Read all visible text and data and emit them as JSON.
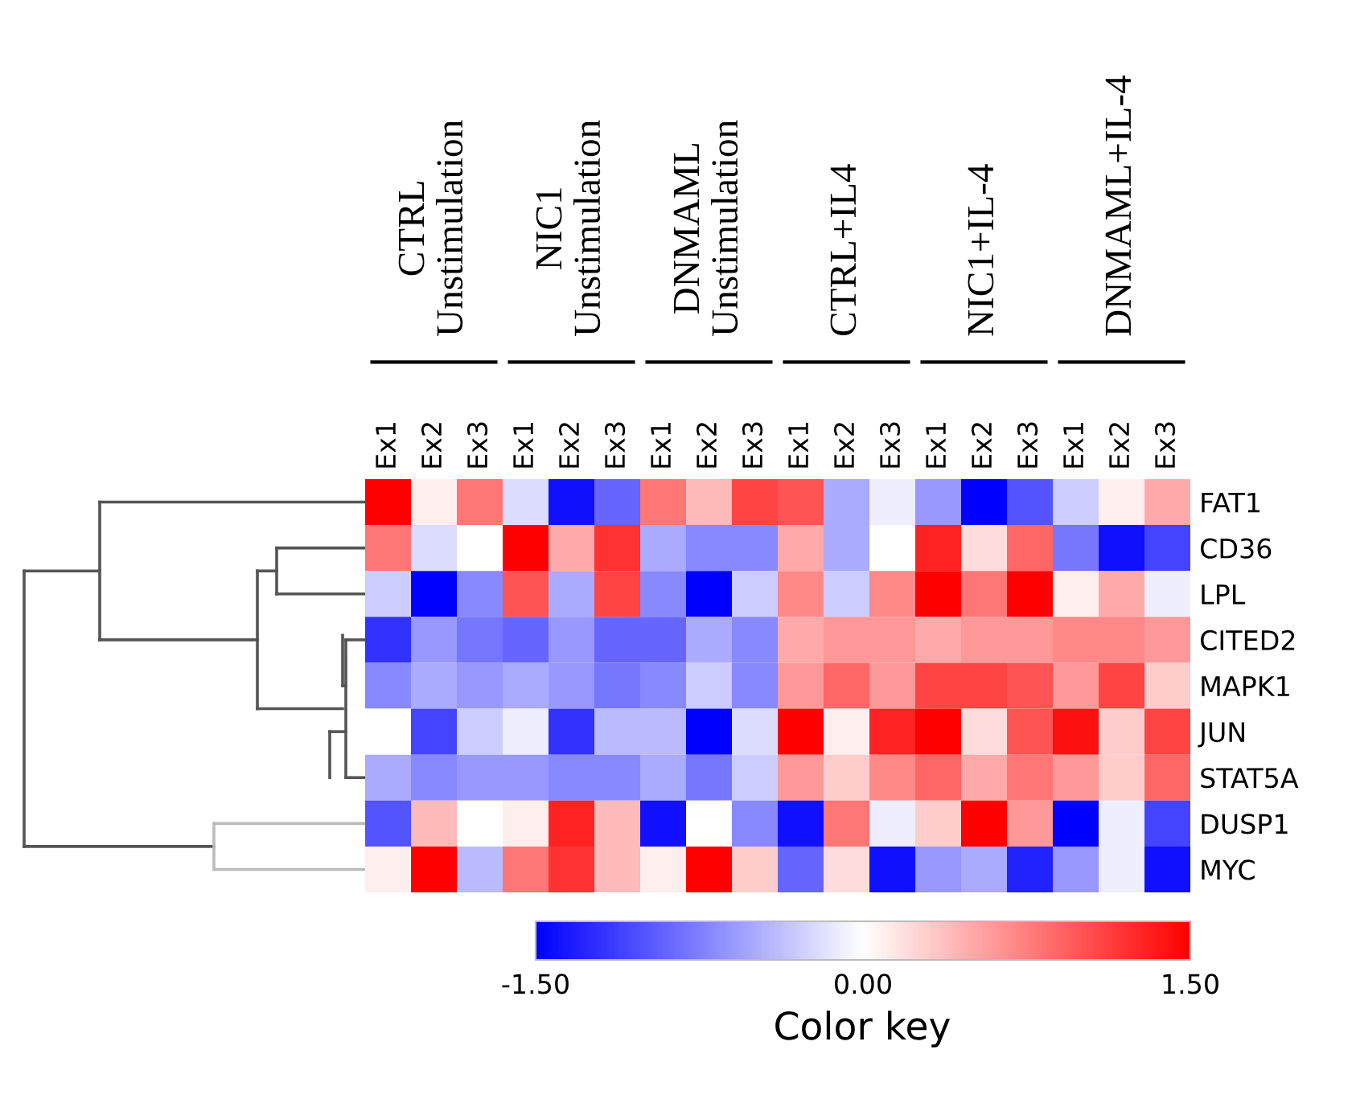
{
  "chart_data": {
    "type": "heatmap",
    "clabel": "Color key",
    "annotations": [
      "CTRL\nUnstimulation",
      "NIC1\nUnstimulation",
      "DNMAML\nUnstimulation",
      "CTRL+IL4",
      "NIC1+IL-4",
      "DNMAML+IL-4"
    ],
    "categories": [
      "Ex1",
      "Ex2",
      "Ex3",
      "Ex1",
      "Ex2",
      "Ex3",
      "Ex1",
      "Ex2",
      "Ex3",
      "Ex1",
      "Ex2",
      "Ex3",
      "Ex1",
      "Ex2",
      "Ex3",
      "Ex1",
      "Ex2",
      "Ex3"
    ],
    "y_categories": [
      "FAT1",
      "CD36",
      "LPL",
      "CITED2",
      "MAPK1",
      "JUN",
      "STAT5A",
      "DUSP1",
      "MYC"
    ],
    "cells": [
      [
        1.5,
        0.1,
        0.8,
        -0.2,
        -1.4,
        -0.9,
        0.8,
        0.4,
        1.1,
        1.0,
        -0.5,
        -0.1,
        -0.6,
        -1.5,
        -1.0,
        -0.3,
        0.1,
        0.5
      ],
      [
        0.8,
        -0.2,
        0.0,
        1.5,
        0.5,
        1.2,
        -0.5,
        -0.7,
        -0.7,
        0.5,
        -0.5,
        0.0,
        1.3,
        0.2,
        0.9,
        -0.8,
        -1.4,
        -1.1
      ],
      [
        -0.3,
        -1.5,
        -0.7,
        1.0,
        -0.5,
        1.1,
        -0.7,
        -1.5,
        -0.3,
        0.7,
        -0.3,
        0.7,
        1.5,
        0.8,
        1.5,
        0.1,
        0.5,
        -0.1
      ],
      [
        -1.2,
        -0.6,
        -0.8,
        -0.9,
        -0.6,
        -0.9,
        -0.9,
        -0.5,
        -0.7,
        0.5,
        0.6,
        0.6,
        0.5,
        0.6,
        0.6,
        0.7,
        0.7,
        0.6
      ],
      [
        -0.7,
        -0.5,
        -0.6,
        -0.5,
        -0.6,
        -0.8,
        -0.7,
        -0.3,
        -0.7,
        0.6,
        0.9,
        0.6,
        1.1,
        1.1,
        1.0,
        0.6,
        1.1,
        0.3
      ],
      [
        0.0,
        -1.1,
        -0.3,
        -0.1,
        -1.2,
        -0.4,
        -0.4,
        -1.5,
        -0.2,
        1.5,
        0.1,
        1.3,
        1.5,
        0.2,
        1.0,
        1.4,
        0.3,
        1.1
      ],
      [
        -0.5,
        -0.7,
        -0.6,
        -0.6,
        -0.7,
        -0.7,
        -0.5,
        -0.8,
        -0.3,
        0.6,
        0.3,
        0.7,
        0.9,
        0.5,
        0.8,
        0.6,
        0.3,
        0.9
      ],
      [
        -1.0,
        0.4,
        0.0,
        0.1,
        1.3,
        0.4,
        -1.4,
        0.0,
        -0.7,
        -1.4,
        0.8,
        -0.1,
        0.3,
        1.5,
        0.6,
        -1.5,
        -0.1,
        -1.1
      ],
      [
        0.1,
        1.5,
        -0.4,
        0.8,
        1.2,
        0.4,
        0.1,
        1.5,
        0.3,
        -0.9,
        0.2,
        -1.4,
        -0.6,
        -0.5,
        -1.3,
        -0.6,
        -0.1,
        -1.4
      ]
    ],
    "clim": [
      -1.5,
      1.5
    ],
    "cticks": [
      {
        "value": -1.5,
        "label": "-1.50"
      },
      {
        "value": 0,
        "label": "0.00"
      },
      {
        "value": 1.5,
        "label": "1.50"
      }
    ]
  }
}
